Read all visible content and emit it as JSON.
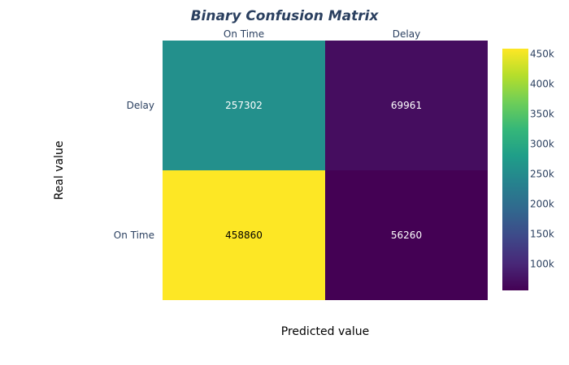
{
  "chart_data": {
    "type": "heatmap",
    "title": "Binary Confusion Matrix",
    "xlabel": "Predicted value",
    "ylabel": "Real value",
    "x_categories": [
      "On Time",
      "Delay"
    ],
    "y_categories": [
      "Delay",
      "On Time"
    ],
    "z": [
      [
        257302,
        69961
      ],
      [
        458860,
        56260
      ]
    ],
    "colorscale": "viridis",
    "zmin": 56260,
    "zmax": 458860,
    "colorbar_ticks": [
      {
        "value": 100000,
        "label": "100k"
      },
      {
        "value": 150000,
        "label": "150k"
      },
      {
        "value": 200000,
        "label": "200k"
      },
      {
        "value": 250000,
        "label": "250k"
      },
      {
        "value": 300000,
        "label": "300k"
      },
      {
        "value": 350000,
        "label": "350k"
      },
      {
        "value": 400000,
        "label": "400k"
      },
      {
        "value": 450000,
        "label": "450k"
      }
    ],
    "x_axis_position": "top",
    "grid": false,
    "colorbar_position": "right"
  }
}
